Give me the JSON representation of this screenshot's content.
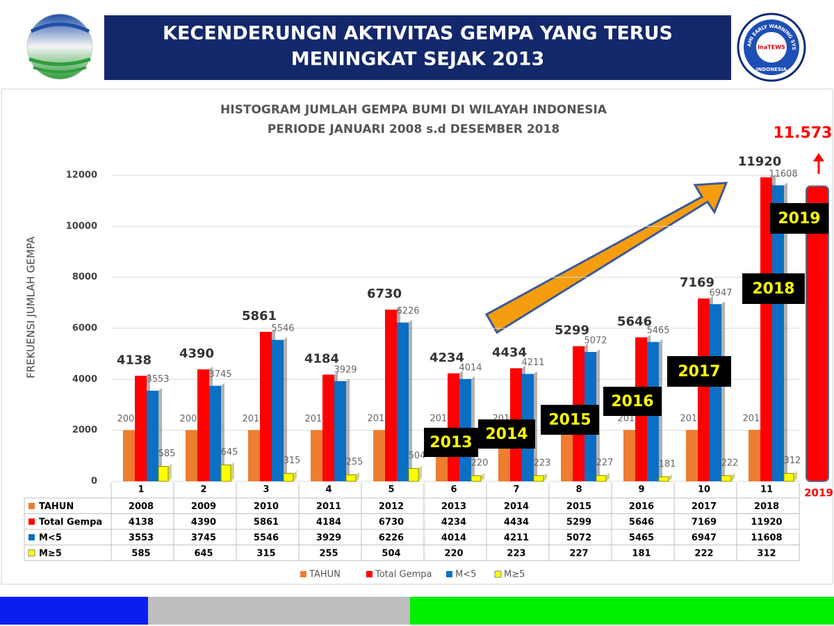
{
  "header": {
    "title_lines": [
      "KECENDERUNGN AKTIVITAS GEMPA YANG TERUS",
      "MENINGKAT SEJAK 2013"
    ],
    "logo_ring_text": "TSUNAMI EARLY WARNING SYSTEM",
    "logo_center_text": "InaTEWS",
    "logo_bottom_text": "INDONESIA"
  },
  "chart_data": {
    "type": "bar",
    "title_lines": [
      "HISTOGRAM  JUMLAH GEMPA BUMI DI WILAYAH INDONESIA",
      "PERIODE JANUARI 2008 s.d  DESEMBER 2018"
    ],
    "y_label": "FREKUENSI JUMLAH GEMPA",
    "categories": [
      "1",
      "2",
      "3",
      "4",
      "5",
      "6",
      "7",
      "8",
      "9",
      "10",
      "11"
    ],
    "series": [
      {
        "name": "TAHUN",
        "color": "#ed7d31",
        "values": [
          2008,
          2009,
          2010,
          2011,
          2012,
          2013,
          2014,
          2015,
          2016,
          2017,
          2018
        ]
      },
      {
        "name": "Total Gempa",
        "color": "#ff0000",
        "values": [
          4138,
          4390,
          5861,
          4184,
          6730,
          4234,
          4434,
          5299,
          5646,
          7169,
          11920
        ]
      },
      {
        "name": "M<5",
        "color": "#0b6fc4",
        "values": [
          3553,
          3745,
          5546,
          3929,
          6226,
          4014,
          4211,
          5072,
          5465,
          6947,
          11608
        ]
      },
      {
        "name": "M≥5",
        "color": "#ffff00",
        "values": [
          585,
          645,
          315,
          255,
          504,
          220,
          223,
          227,
          181,
          222,
          312
        ]
      }
    ],
    "ylim": [
      0,
      12000
    ],
    "yticks": [
      0,
      2000,
      4000,
      6000,
      8000,
      10000,
      12000
    ],
    "grid": true,
    "projection": {
      "label": "2019",
      "value": 11573,
      "value_label": "11.573",
      "color": "#ff0000"
    },
    "year_boxes": [
      "2013",
      "2014",
      "2015",
      "2016",
      "2017",
      "2018",
      "2019"
    ]
  }
}
